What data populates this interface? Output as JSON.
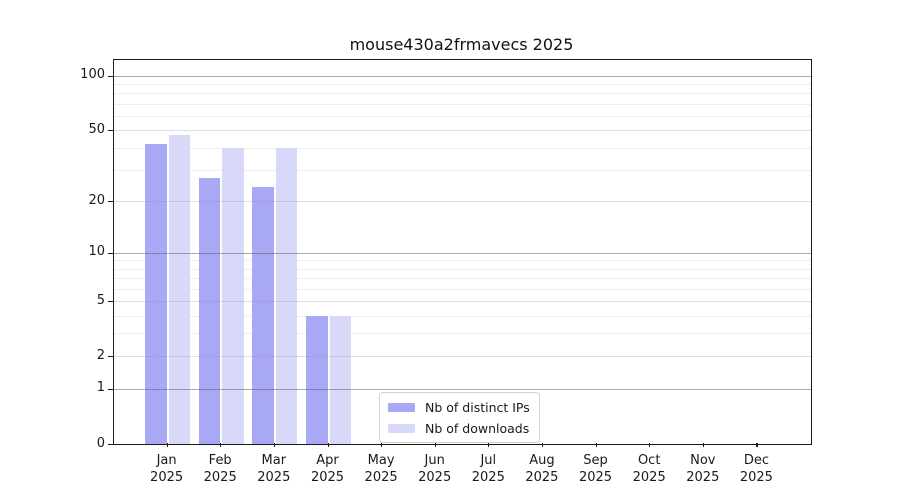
{
  "window": {
    "background": "#ffffff"
  },
  "chart_data": {
    "type": "bar",
    "title": "mouse430a2frmavecs 2025",
    "categories": [
      "Jan",
      "Feb",
      "Mar",
      "Apr",
      "May",
      "Jun",
      "Jul",
      "Aug",
      "Sep",
      "Oct",
      "Nov",
      "Dec"
    ],
    "x_year_label": "2025",
    "series": [
      {
        "name": "Nb of distinct IPs",
        "color": "#a8a8f5",
        "values": [
          42,
          27,
          24,
          4,
          0,
          0,
          0,
          0,
          0,
          0,
          0,
          0
        ]
      },
      {
        "name": "Nb of downloads",
        "color": "#d8d8f8",
        "values": [
          47,
          40,
          40,
          4,
          0,
          0,
          0,
          0,
          0,
          0,
          0,
          0
        ]
      }
    ],
    "yscale": "log1p",
    "ylim": [
      0,
      122
    ],
    "yticks_labeled": [
      100,
      50,
      20,
      10,
      5,
      2,
      1,
      0
    ],
    "gridlines_major": [
      1,
      10,
      100
    ],
    "gridlines_light": [
      2,
      5,
      20,
      50
    ],
    "gridlines_minor": [
      3,
      4,
      6,
      7,
      8,
      9,
      30,
      40,
      60,
      70,
      80,
      90
    ],
    "grid": "horizontal",
    "legend_position": "inside-bottom-center",
    "colors": {
      "spine": "#1a1a1a",
      "text": "#1a1a1a",
      "legend_border": "#d2d2d2",
      "minor_grid": "#ededed"
    }
  }
}
